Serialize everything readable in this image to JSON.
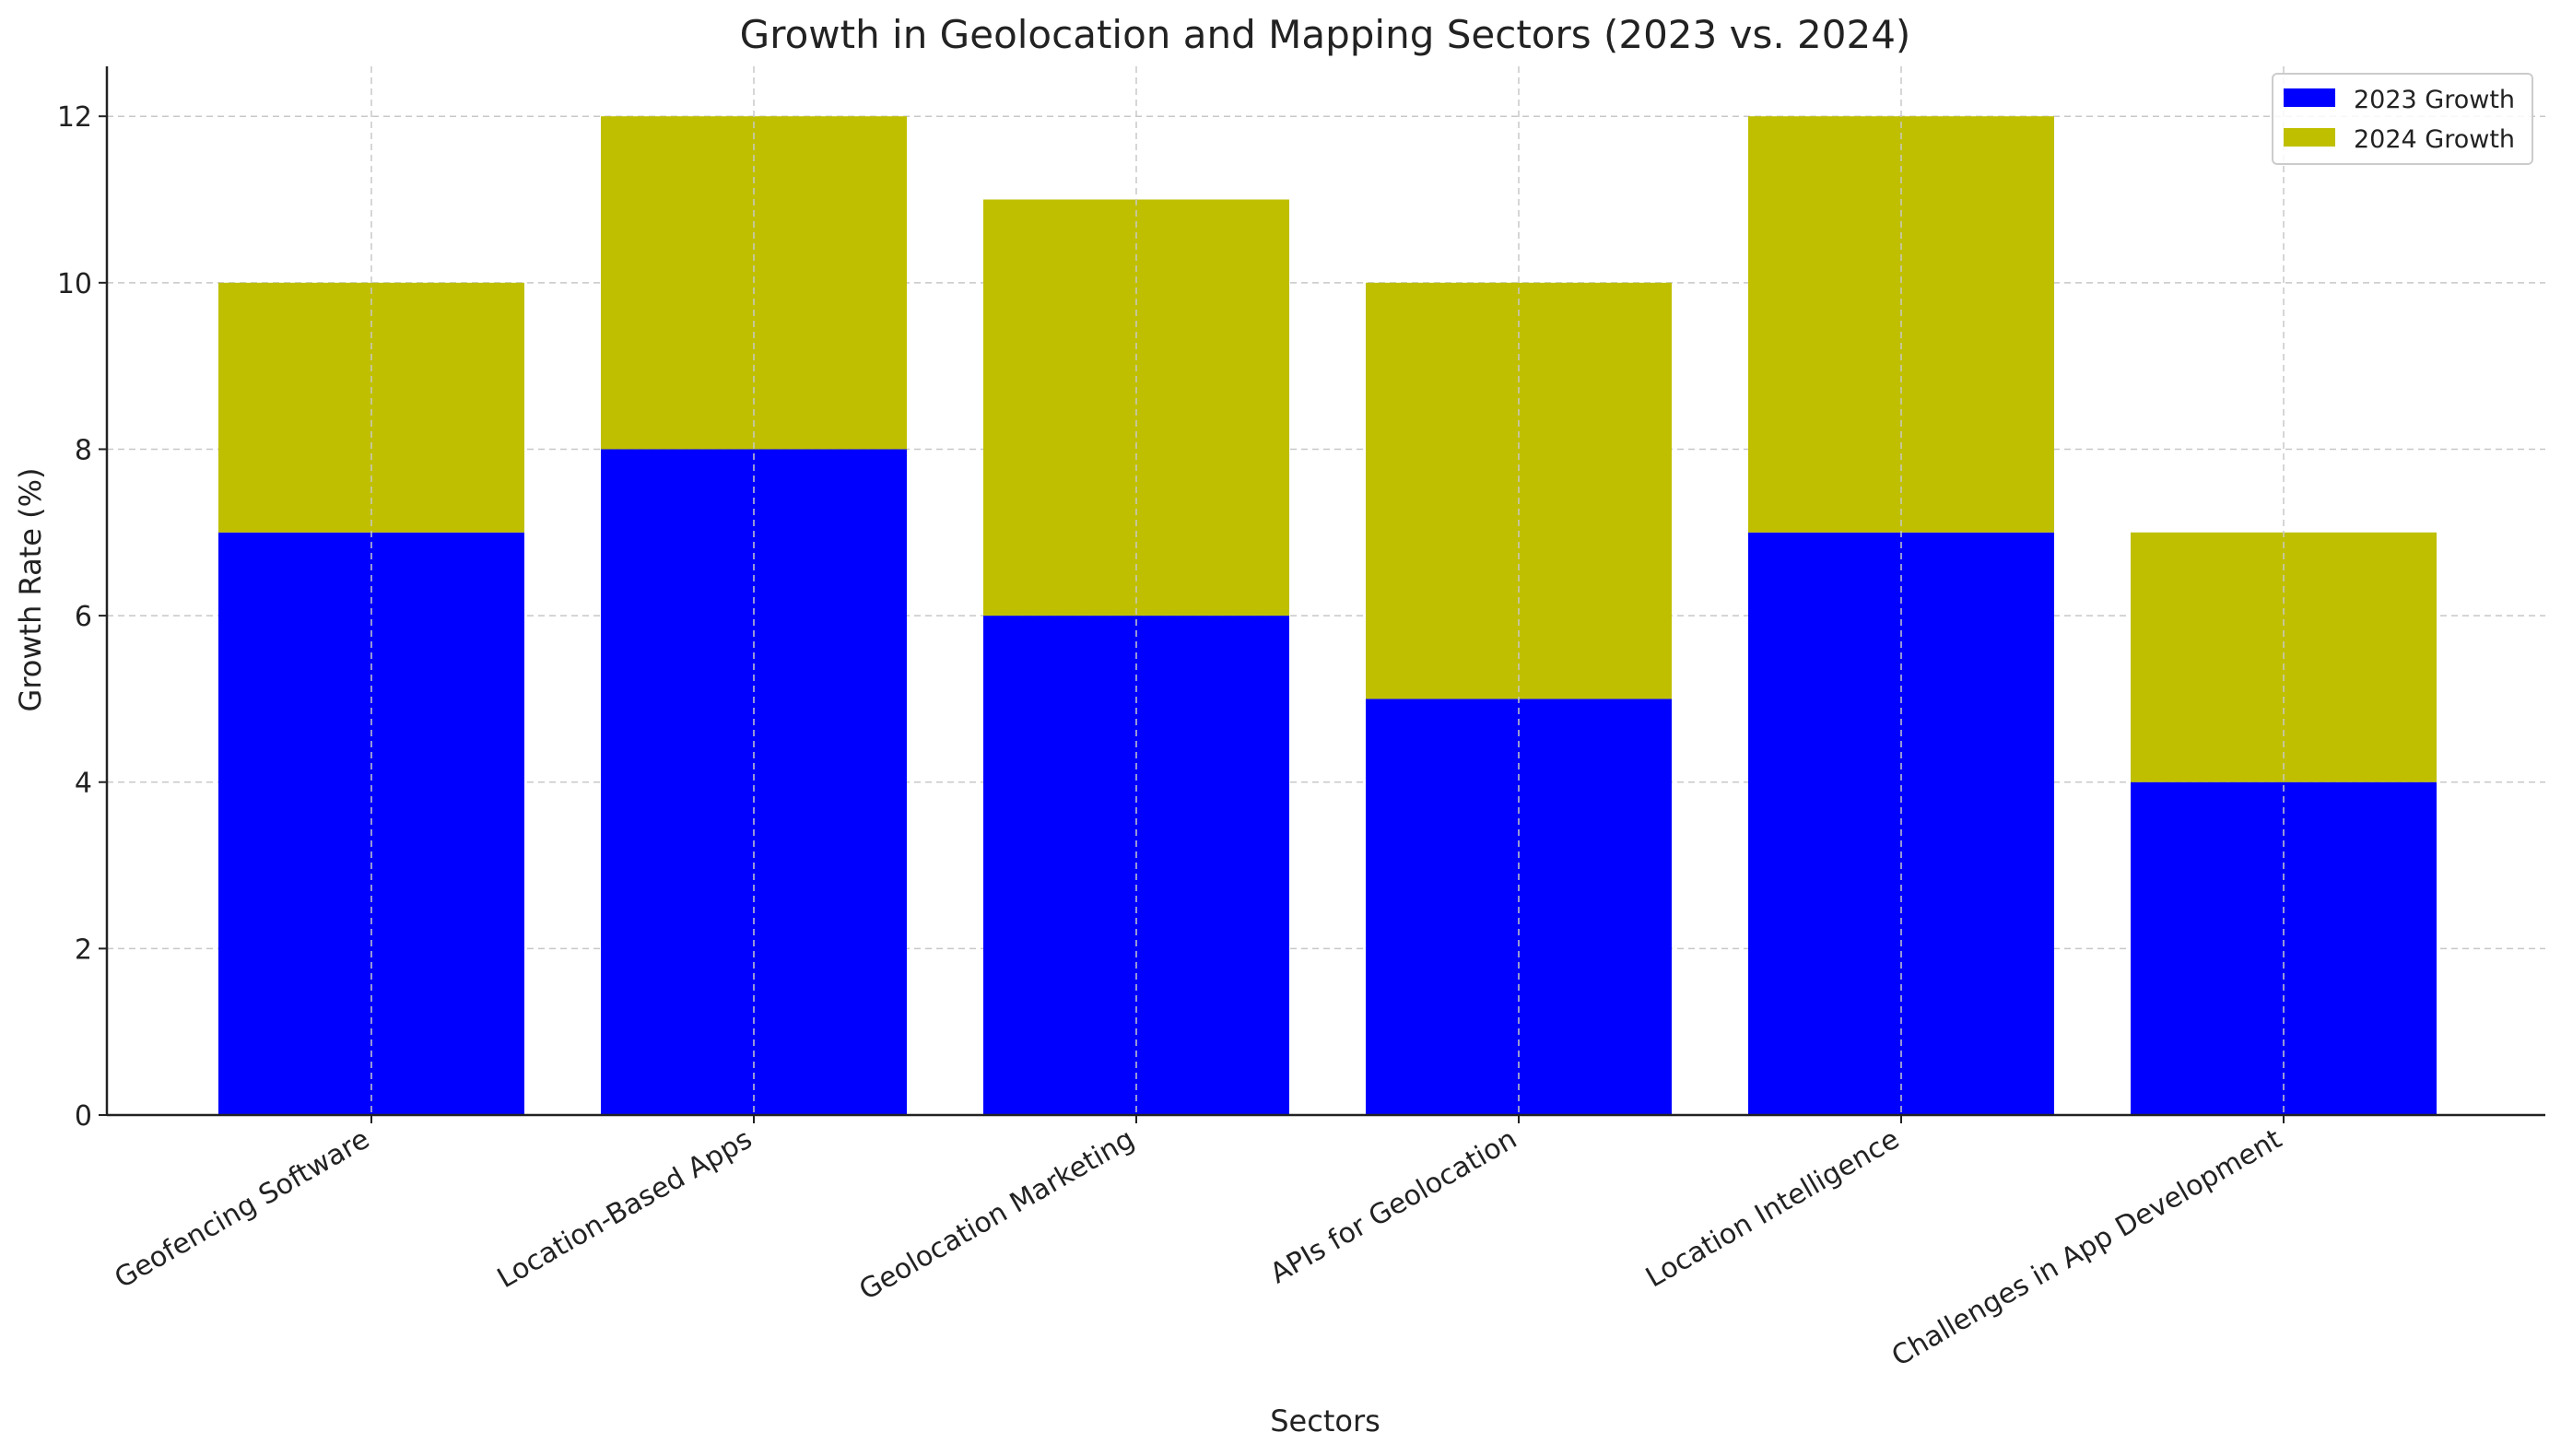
{
  "chart_data": {
    "type": "bar",
    "stacked": true,
    "title": "Growth in Geolocation and Mapping Sectors (2023 vs. 2024)",
    "xlabel": "Sectors",
    "ylabel": "Growth Rate (%)",
    "ylim": [
      0,
      12.6
    ],
    "yticks": [
      0,
      2,
      4,
      6,
      8,
      10,
      12
    ],
    "grid": true,
    "legend_position": "top-right",
    "categories": [
      "Geofencing Software",
      "Location-Based Apps",
      "Geolocation Marketing",
      "APIs for Geolocation",
      "Location Intelligence",
      "Challenges in App Development"
    ],
    "series": [
      {
        "name": "2023 Growth",
        "color": "#0000ff",
        "values": [
          7,
          8,
          6,
          5,
          7,
          4
        ]
      },
      {
        "name": "2024 Growth",
        "color": "#bfbf00",
        "values": [
          3,
          4,
          5,
          5,
          5,
          3
        ]
      }
    ]
  }
}
